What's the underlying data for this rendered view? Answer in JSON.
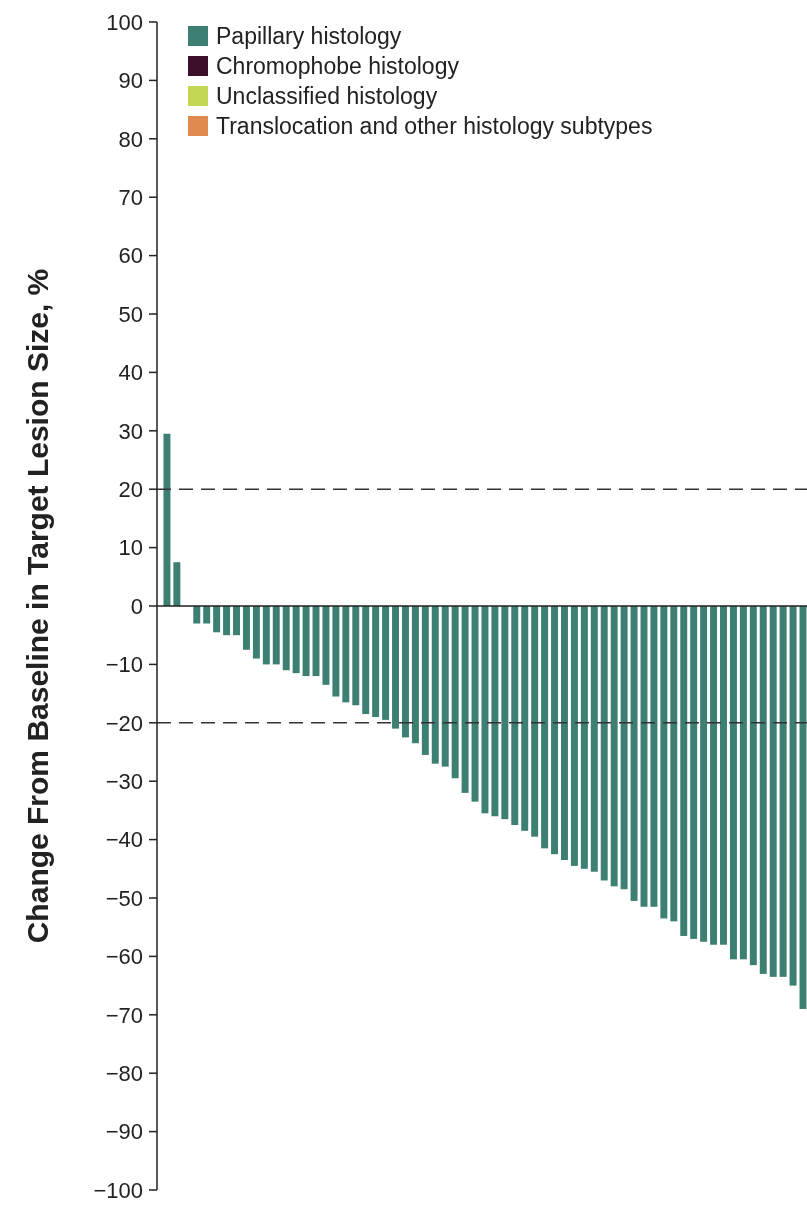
{
  "chart_data": {
    "type": "bar",
    "ylabel": "Change From Baseline in Target Lesion Size, %",
    "categories": [
      null,
      null,
      null,
      null,
      null,
      null,
      null,
      null,
      null,
      null,
      null,
      null,
      null,
      null,
      null,
      null,
      null,
      null,
      null,
      null,
      null,
      null,
      null,
      null,
      null,
      null,
      null,
      null,
      null,
      null,
      null,
      null,
      null,
      null,
      null,
      null,
      null,
      null,
      null,
      null,
      null,
      null,
      null,
      null,
      null,
      null,
      null,
      null,
      null,
      null,
      null,
      null,
      null,
      null,
      null,
      null,
      null,
      null,
      null,
      null,
      null,
      null,
      null,
      null,
      null
    ],
    "series": [
      {
        "name": "Papillary histology",
        "color": "#3d7f72",
        "values": [
          29.5,
          7.5,
          null,
          -3,
          -3,
          -4.5,
          -5,
          -5,
          -7.5,
          -9,
          -10,
          -10,
          -11,
          -11.5,
          -12,
          -12,
          -13.5,
          -15.5,
          -16.5,
          -17,
          -18.5,
          -19,
          -19.5,
          -21,
          -22.5,
          -23.5,
          -25.5,
          -27,
          -27.5,
          -29.5,
          -32,
          -33.5,
          -35.5,
          -36,
          -36.5,
          -37.5,
          -38.5,
          -39.5,
          -41.5,
          -42.5,
          -43.5,
          -44.5,
          -45,
          -45.5,
          -47,
          -48,
          -48.5,
          -50.5,
          -51.5,
          -51.5,
          -53.5,
          -54,
          -56.5,
          -57,
          -57.5,
          -58,
          -58,
          -60.5,
          -60.5,
          -61.5,
          -63,
          -63.5,
          -63.5,
          -65,
          -69
        ]
      },
      {
        "name": "Chromophobe histology",
        "color": "#3b0f2a",
        "values": [
          null,
          null,
          null,
          null,
          null,
          null,
          null,
          null,
          null,
          null,
          null,
          null,
          null,
          null,
          null,
          null,
          null,
          null,
          null,
          null,
          null,
          null,
          null,
          null,
          null,
          null,
          null,
          null,
          null,
          null,
          null,
          null,
          null,
          null,
          null,
          null,
          null,
          null,
          null,
          null,
          null,
          null,
          null,
          null,
          null,
          null,
          null,
          null,
          null,
          null,
          null,
          null,
          null,
          null,
          null,
          null,
          null,
          null,
          null,
          null,
          null,
          null,
          null,
          null,
          null
        ]
      },
      {
        "name": "Unclassified histology",
        "color": "#c5d654",
        "values": [
          null,
          null,
          null,
          null,
          null,
          null,
          null,
          null,
          null,
          null,
          null,
          null,
          null,
          null,
          null,
          null,
          null,
          null,
          null,
          null,
          null,
          null,
          null,
          null,
          null,
          null,
          null,
          null,
          null,
          null,
          null,
          null,
          null,
          null,
          null,
          null,
          null,
          null,
          null,
          null,
          null,
          null,
          null,
          null,
          null,
          null,
          null,
          null,
          null,
          null,
          null,
          null,
          null,
          null,
          null,
          null,
          null,
          null,
          null,
          null,
          null,
          null,
          null,
          null,
          null
        ]
      },
      {
        "name": "Translocation and other histology subtypes",
        "color": "#e08a50",
        "values": [
          null,
          null,
          null,
          null,
          null,
          null,
          null,
          null,
          null,
          null,
          null,
          null,
          null,
          null,
          null,
          null,
          null,
          null,
          null,
          null,
          null,
          null,
          null,
          null,
          null,
          null,
          null,
          null,
          null,
          null,
          null,
          null,
          null,
          null,
          null,
          null,
          null,
          null,
          null,
          null,
          null,
          null,
          null,
          null,
          null,
          null,
          null,
          null,
          null,
          null,
          null,
          null,
          null,
          null,
          null,
          null,
          null,
          null,
          null,
          null,
          null,
          null,
          null,
          null,
          null
        ]
      }
    ],
    "ylim": [
      -100,
      100
    ],
    "yticks": [
      100,
      90,
      80,
      70,
      60,
      50,
      40,
      30,
      20,
      10,
      0,
      {
        "value": -10,
        "label": "−10"
      },
      {
        "value": -20,
        "label": "−20"
      },
      {
        "value": -30,
        "label": "−30"
      },
      {
        "value": -40,
        "label": "−40"
      },
      {
        "value": -50,
        "label": "−50"
      },
      {
        "value": -60,
        "label": "−60"
      },
      {
        "value": -70,
        "label": "−70"
      },
      {
        "value": -80,
        "label": "−80"
      },
      {
        "value": -90,
        "label": "−90"
      },
      {
        "value": -100,
        "label": "−100"
      }
    ],
    "ref_lines": [
      {
        "axis": "y",
        "value": 20,
        "line_style": "dashed"
      },
      {
        "axis": "y",
        "value": -20,
        "line_style": "dashed"
      }
    ],
    "grid": false,
    "legend": "top left"
  }
}
